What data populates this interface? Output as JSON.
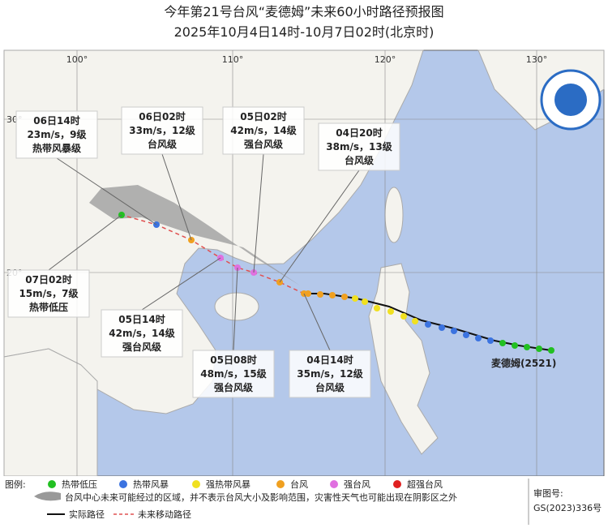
{
  "title": {
    "line1": "今年第21号台风“麦德姆”未来60小时路径预报图",
    "line2": "2025年10月4日14时-10月7日02时(北京时)"
  },
  "map": {
    "lon_labels": [
      "100°",
      "110°",
      "120°",
      "130°"
    ],
    "lat_labels": [
      "30°",
      "20°"
    ],
    "storm_name": "麦德姆(2521)",
    "callouts": [
      {
        "time": "06日14时",
        "wind": "23m/s，9级",
        "level": "热带风暴级"
      },
      {
        "time": "06日02时",
        "wind": "33m/s，12级",
        "level": "台风级"
      },
      {
        "time": "05日02时",
        "wind": "42m/s，14级",
        "level": "强台风级"
      },
      {
        "time": "04日20时",
        "wind": "38m/s，13级",
        "level": "台风级"
      },
      {
        "time": "07日02时",
        "wind": "15m/s，7级",
        "level": "热带低压"
      },
      {
        "time": "05日14时",
        "wind": "42m/s，14级",
        "level": "强台风级"
      },
      {
        "time": "05日08时",
        "wind": "48m/s，15级",
        "level": "强台风级"
      },
      {
        "time": "04日14时",
        "wind": "35m/s，12级",
        "level": "台风级"
      }
    ]
  },
  "legend": {
    "label": "图例:",
    "categories": [
      "热带低压",
      "热带风暴",
      "强热带风暴",
      "台风",
      "强台风",
      "超强台风"
    ],
    "cone_note": "台风中心未来可能经过的区域，并不表示台风大小及影响范围，灾害性天气也可能出现在阴影区之外",
    "actual": "实际路径",
    "forecast": "未来移动路径"
  },
  "approval": {
    "label": "审图号:",
    "number": "GS(2023)336号"
  }
}
